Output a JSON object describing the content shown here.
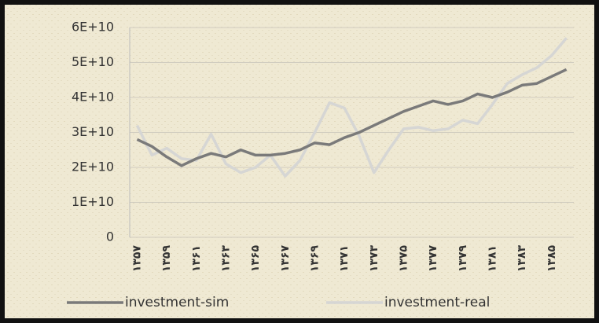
{
  "chart_data": {
    "type": "line",
    "categories": [
      "۱۳۵۷",
      null,
      "۱۳۵۹",
      null,
      "۱۳۶۱",
      null,
      "۱۳۶۳",
      null,
      "۱۳۶۵",
      null,
      "۱۳۶۷",
      null,
      "۱۳۶۹",
      null,
      "۱۳۷۱",
      null,
      "۱۳۷۳",
      null,
      "۱۳۷۵",
      null,
      "۱۳۷۷",
      null,
      "۱۳۷۹",
      null,
      "۱۳۸۱",
      null,
      "۱۳۸۳",
      null,
      "۱۳۸۵",
      null
    ],
    "series": [
      {
        "name": "investment-sim",
        "color": "#7a7a7a",
        "values": [
          28000000000,
          26000000000,
          23000000000,
          20500000000,
          22500000000,
          24000000000,
          23000000000,
          25000000000,
          23500000000,
          23500000000,
          24000000000,
          25000000000,
          27000000000,
          26500000000,
          28500000000,
          30000000000,
          32000000000,
          34000000000,
          36000000000,
          37500000000,
          39000000000,
          38000000000,
          39000000000,
          41000000000,
          40000000000,
          41500000000,
          43500000000,
          44000000000,
          46000000000,
          48000000000
        ]
      },
      {
        "name": "investment-real",
        "color": "#d6d6d4",
        "values": [
          32000000000,
          23500000000,
          25500000000,
          22500000000,
          22000000000,
          29500000000,
          21000000000,
          18500000000,
          20000000000,
          23500000000,
          17500000000,
          22000000000,
          30000000000,
          38500000000,
          37000000000,
          29000000000,
          18500000000,
          25000000000,
          31000000000,
          31500000000,
          30500000000,
          31000000000,
          33500000000,
          32500000000,
          38000000000,
          44000000000,
          46500000000,
          48500000000,
          52000000000,
          57000000000
        ]
      }
    ],
    "ylim": [
      0,
      60000000000
    ],
    "yticks": [
      0,
      {
        "value": 10000000000,
        "label": "1E+10"
      },
      {
        "value": 20000000000,
        "label": "2E+10"
      },
      {
        "value": 30000000000,
        "label": "3E+10"
      },
      {
        "value": 40000000000,
        "label": "4E+10"
      },
      {
        "value": 50000000000,
        "label": "5E+10"
      },
      {
        "value": 60000000000,
        "label": "6E+10"
      }
    ],
    "grid": true,
    "legend": "bottom"
  }
}
